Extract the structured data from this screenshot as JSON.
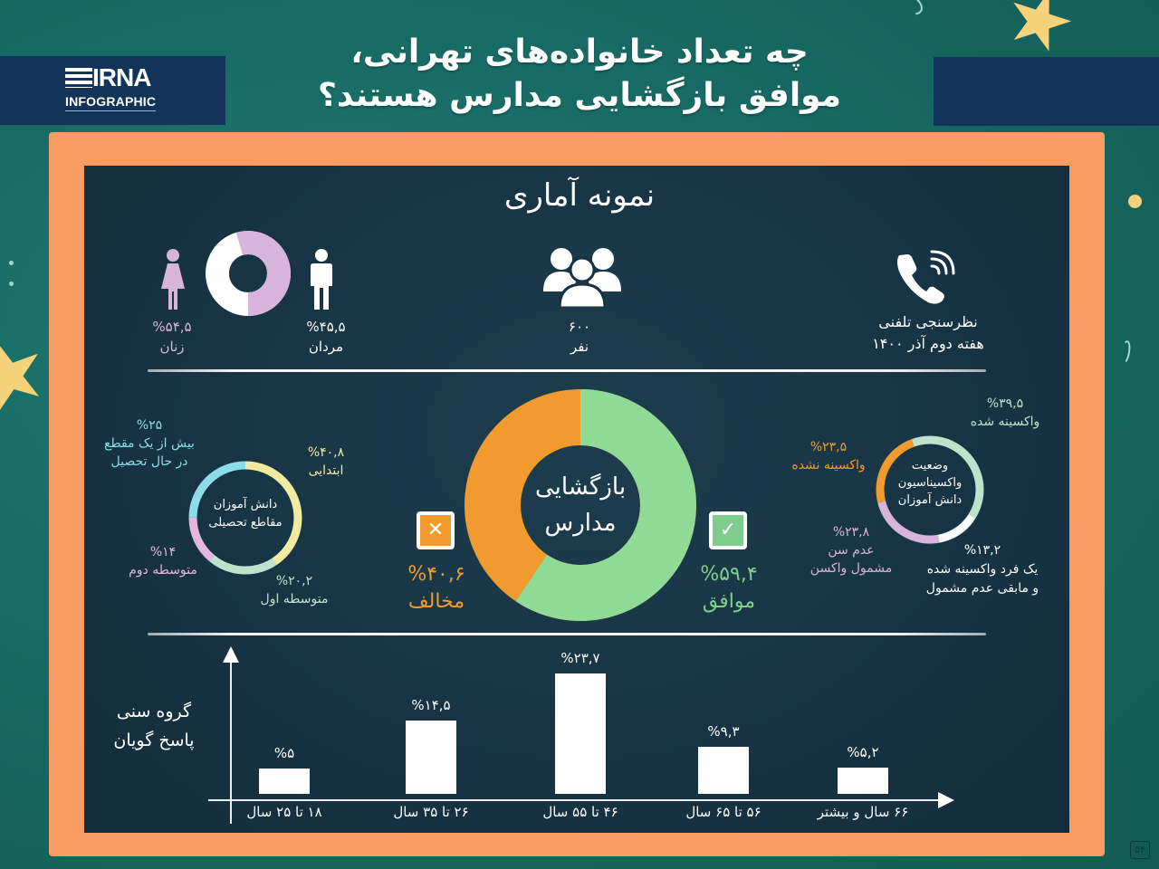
{
  "header": {
    "logo_brand": "IRNA",
    "logo_sub": "INFOGRAPHIC",
    "title_line1": "چه تعداد خانواده‌های تهرانی،",
    "title_line2": "موافق بازگشایی مدارس هستند؟"
  },
  "sample": {
    "title": "نمونه آماری",
    "women": {
      "value": "%۵۴,۵",
      "label": "زنان",
      "percent": 54.5,
      "color": "#d7b4dc"
    },
    "men": {
      "value": "%۴۵,۵",
      "label": "مردان",
      "percent": 45.5,
      "color": "#ffffff"
    },
    "people": {
      "value": "۶۰۰",
      "label": "نفر"
    },
    "survey": {
      "line1": "نظرسنجی تلفنی",
      "line2": "هفته دوم آذر  ۱۴۰۰"
    }
  },
  "education": {
    "center_line1": "دانش آموزان",
    "center_line2": "مقاطع تحصیلی",
    "segments": [
      {
        "value": "%۴۰,۸",
        "label": "ابتدایی",
        "percent": 40.8,
        "color": "#f3eaa2"
      },
      {
        "value": "%۲۰,۲",
        "label": "متوسطه اول",
        "percent": 20.2,
        "color": "#bfe2cc"
      },
      {
        "value": "%۱۴",
        "label": "متوسطه دوم",
        "percent": 14,
        "color": "#e3b7de"
      },
      {
        "value": "%۲۵",
        "label_line1": "بیش از یک مقطع",
        "label_line2": "در حال تحصیل",
        "percent": 25,
        "color": "#8cdde8"
      }
    ]
  },
  "reopening": {
    "center_line1": "بازگشایی",
    "center_line2": "مدارس",
    "agree": {
      "value": "%۵۹,۴",
      "label": "موافق",
      "percent": 59.4,
      "color": "#7fce8d",
      "icon": "✓"
    },
    "oppose": {
      "value": "%۴۰,۶",
      "label": "مخالف",
      "percent": 40.6,
      "color": "#f19a2e",
      "icon": "✕"
    }
  },
  "vaccination": {
    "center_line1": "وضعیت",
    "center_line2": "واکسیناسیون",
    "center_line3": "دانش آموزان",
    "segments": [
      {
        "value": "%۳۹,۵",
        "label": "واکسینه شده",
        "percent": 39.5,
        "color": "#bfe2cc"
      },
      {
        "value": "%۱۳,۲",
        "label_line1": "یک فرد واکسینه شده",
        "label_line2": "و مابقی عدم مشمول",
        "percent": 13.2,
        "color": "#ffffff"
      },
      {
        "value": "%۲۳,۸",
        "label_line1": "عدم سن",
        "label_line2": "مشمول واکسن",
        "percent": 23.8,
        "color": "#d7b4dc"
      },
      {
        "value": "%۲۳,۵",
        "label": "واکسینه نشده",
        "percent": 23.5,
        "color": "#f19a2e"
      }
    ]
  },
  "age_chart": {
    "axis_title_line1": "گروه سنی",
    "axis_title_line2": "پاسخ گویان"
  },
  "chart_data": [
    {
      "type": "pie",
      "title": "بازگشایی مدارس",
      "categories": [
        "موافق",
        "مخالف"
      ],
      "values": [
        59.4,
        40.6
      ],
      "colors": [
        "#7fce8d",
        "#f19a2e"
      ]
    },
    {
      "type": "pie",
      "title": "نمونه آماری - جنسیت",
      "categories": [
        "زنان",
        "مردان"
      ],
      "values": [
        54.5,
        45.5
      ],
      "colors": [
        "#d7b4dc",
        "#ffffff"
      ]
    },
    {
      "type": "pie",
      "title": "دانش آموزان مقاطع تحصیلی",
      "categories": [
        "ابتدایی",
        "متوسطه اول",
        "متوسطه دوم",
        "بیش از یک مقطع در حال تحصیل"
      ],
      "values": [
        40.8,
        20.2,
        14,
        25
      ]
    },
    {
      "type": "pie",
      "title": "وضعیت واکسیناسیون دانش آموزان",
      "categories": [
        "واکسینه شده",
        "یک فرد واکسینه شده و مابقی عدم مشمول",
        "عدم سن مشمول واکسن",
        "واکسینه نشده"
      ],
      "values": [
        39.5,
        13.2,
        23.8,
        23.5
      ]
    },
    {
      "type": "bar",
      "title": "گروه سنی پاسخ گویان",
      "xlabel": "",
      "ylabel": "گروه سنی پاسخ گویان",
      "categories": [
        "۱۸ تا ۲۵ سال",
        "۲۶ تا ۳۵ سال",
        "۴۶ تا ۵۵ سال",
        "۵۶ تا ۶۵ سال",
        "۶۶ سال و بیشتر"
      ],
      "values": [
        5,
        14.5,
        23.7,
        9.3,
        5.2
      ],
      "value_labels": [
        "%۵",
        "%۱۴,۵",
        "%۲۳,۷",
        "%۹,۳",
        "%۵,۲"
      ],
      "ylim": [
        0,
        25
      ],
      "grid": false
    }
  ],
  "page_number": "۵۴"
}
